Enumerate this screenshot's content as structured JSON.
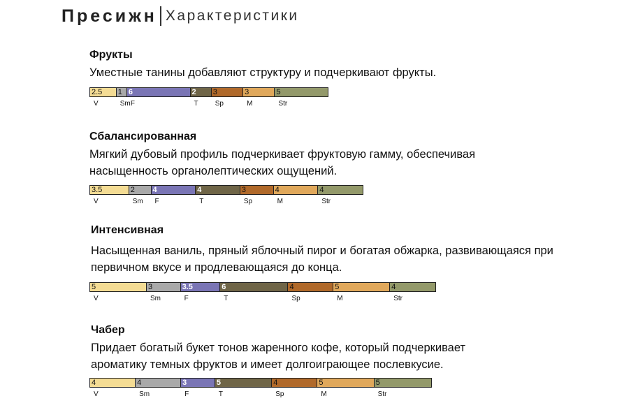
{
  "header": {
    "brand": "Пресижн",
    "subtitle": "Характеристики"
  },
  "colors": {
    "V": "#f4dc94",
    "Sm": "#a9a9a9",
    "F": "#7a75b5",
    "T": "#6f6547",
    "Sp": "#b0692a",
    "M": "#e0a85b",
    "Str": "#93996a"
  },
  "sections": [
    {
      "title": "Фрукты",
      "desc": "Уместные танины добавляют структуру и подчеркивают фрукты.",
      "segments": [
        {
          "key": "V",
          "value": "2.5"
        },
        {
          "key": "Sm",
          "value": "1"
        },
        {
          "key": "F",
          "value": "6"
        },
        {
          "key": "T",
          "value": "2"
        },
        {
          "key": "Sp",
          "value": "3"
        },
        {
          "key": "M",
          "value": "3"
        },
        {
          "key": "Str",
          "value": "5"
        }
      ]
    },
    {
      "title": "Сбалансированная",
      "desc": "Мягкий дубовый профиль подчеркивает фруктовую гамму, обеспечивая насыщенность органолептических ощущений.",
      "desc1": "Мягкий дубовый профиль подчеркивает фруктовую гамму, обеспечивая",
      "desc2": "насыщенность органолептических ощущений.",
      "segments": [
        {
          "key": "V",
          "value": "3.5"
        },
        {
          "key": "Sm",
          "value": "2"
        },
        {
          "key": "F",
          "value": "4"
        },
        {
          "key": "T",
          "value": "4"
        },
        {
          "key": "Sp",
          "value": "3"
        },
        {
          "key": "M",
          "value": "4"
        },
        {
          "key": "Str",
          "value": "4"
        }
      ]
    },
    {
      "title": "Интенсивная",
      "desc": "Насыщенная ваниль, пряный яблочный пирог и богатая обжарка, развивающаяся при первичном вкусе и продлевающаяся до конца.",
      "desc1": "Насыщенная ваниль, пряный яблочный пирог и богатая обжарка, развивающаяся при",
      "desc2": "первичном вкусе и продлевающаяся до конца.",
      "segments": [
        {
          "key": "V",
          "value": "5"
        },
        {
          "key": "Sm",
          "value": "3"
        },
        {
          "key": "F",
          "value": "3.5"
        },
        {
          "key": "T",
          "value": "6"
        },
        {
          "key": "Sp",
          "value": "4"
        },
        {
          "key": "M",
          "value": "5"
        },
        {
          "key": "Str",
          "value": "4"
        }
      ]
    },
    {
      "title": "Чабер",
      "desc": "Придает богатый букет тонов жаренного кофе, который подчеркивает ароматику темных фруктов и имеет долгоиграющее послевкусие.",
      "desc1": "Придает богатый букет тонов жаренного кофе, который подчеркивает",
      "desc2": "ароматику темных фруктов и имеет долгоиграющее послевкусие.",
      "segments": [
        {
          "key": "V",
          "value": "4"
        },
        {
          "key": "Sm",
          "value": "4"
        },
        {
          "key": "F",
          "value": "3"
        },
        {
          "key": "T",
          "value": "5"
        },
        {
          "key": "Sp",
          "value": "4"
        },
        {
          "key": "M",
          "value": "5"
        },
        {
          "key": "Str",
          "value": "5"
        }
      ]
    }
  ]
}
